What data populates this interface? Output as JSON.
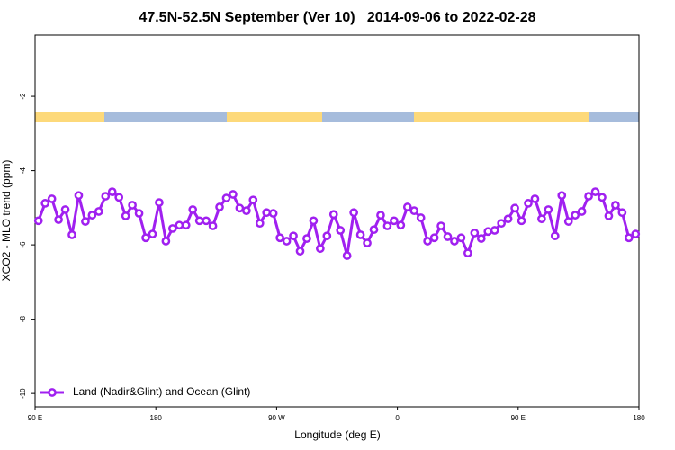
{
  "chart_data": {
    "type": "line",
    "title": "47.5N-52.5N September (Ver 10)   2014-09-06 to 2022-02-28",
    "xlabel": "Longitude (deg E)",
    "ylabel": "XCO2 - MLO trend (ppm)",
    "xlim": [
      90,
      540
    ],
    "ylim": [
      -10.36,
      -0.35
    ],
    "xticks": [
      {
        "value": 90,
        "label": "90 E"
      },
      {
        "value": 180,
        "label": "180"
      },
      {
        "value": 270,
        "label": "90 W"
      },
      {
        "value": 360,
        "label": "0"
      },
      {
        "value": 450,
        "label": "90 E"
      },
      {
        "value": 540,
        "label": "180"
      }
    ],
    "yticks": [
      -2,
      -4,
      -6,
      -8,
      -10
    ],
    "legend": "bottom-left",
    "x": [
      92.5,
      97.5,
      102.5,
      107.5,
      112.5,
      117.5,
      122.5,
      127.5,
      132.5,
      137.5,
      142.5,
      147.5,
      152.5,
      157.5,
      162.5,
      167.5,
      172.5,
      177.5,
      182.5,
      187.5,
      192.5,
      197.5,
      202.5,
      207.5,
      212.5,
      217.5,
      222.5,
      227.5,
      232.5,
      237.5,
      242.5,
      247.5,
      252.5,
      257.5,
      262.5,
      267.5,
      272.5,
      277.5,
      282.5,
      287.5,
      292.5,
      297.5,
      302.5,
      307.5,
      312.5,
      317.5,
      322.5,
      327.5,
      332.5,
      337.5,
      342.5,
      347.5,
      352.5,
      357.5,
      362.5,
      367.5,
      372.5,
      377.5,
      382.5,
      387.5,
      392.5,
      397.5,
      402.5,
      407.5,
      412.5,
      417.5,
      422.5,
      427.5,
      432.5,
      437.5,
      442.5,
      447.5,
      452.5,
      457.5,
      462.5,
      467.5,
      472.5,
      477.5,
      482.5,
      487.5,
      492.5,
      497.5,
      502.5,
      507.5,
      512.5,
      517.5,
      522.5,
      527.5,
      532.5,
      537.5
    ],
    "series": [
      {
        "name": "Land (Nadir&Glint) and Ocean (Glint)",
        "color": "#a020f0",
        "values": [
          -5.35,
          -4.88,
          -4.76,
          -5.32,
          -5.05,
          -5.73,
          -4.67,
          -5.37,
          -5.2,
          -5.1,
          -4.69,
          -4.57,
          -4.72,
          -5.22,
          -4.93,
          -5.15,
          -5.81,
          -5.71,
          -4.86,
          -5.9,
          -5.56,
          -5.47,
          -5.47,
          -5.05,
          -5.35,
          -5.35,
          -5.49,
          -4.98,
          -4.74,
          -4.64,
          -5.01,
          -5.08,
          -4.79,
          -5.42,
          -5.13,
          -5.15,
          -5.81,
          -5.9,
          -5.76,
          -6.17,
          -5.83,
          -5.35,
          -6.1,
          -5.76,
          -5.18,
          -5.61,
          -6.29,
          -5.13,
          -5.73,
          -5.95,
          -5.59,
          -5.2,
          -5.49,
          -5.35,
          -5.47,
          -4.98,
          -5.08,
          -5.27,
          -5.9,
          -5.81,
          -5.49,
          -5.78,
          -5.9,
          -5.81,
          -6.22,
          -5.68,
          -5.83,
          -5.64,
          -5.61,
          -5.42,
          -5.3,
          -5.01,
          -5.35,
          -4.88,
          -4.76,
          -5.3,
          -5.05,
          -5.76,
          -4.67,
          -5.37,
          -5.2,
          -5.1,
          -4.69,
          -4.57,
          -4.72,
          -5.22,
          -4.93,
          -5.13,
          -5.81,
          -5.71
        ]
      }
    ]
  }
}
